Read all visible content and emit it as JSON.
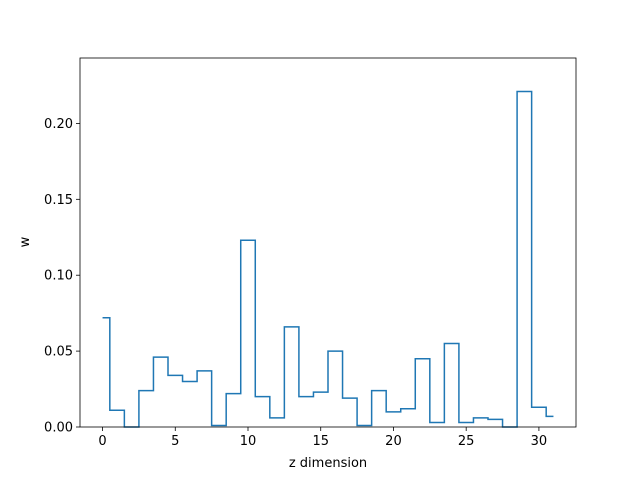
{
  "chart_data": {
    "type": "line",
    "drawstyle": "steps-mid",
    "title": "",
    "xlabel": "z dimension",
    "ylabel": "w",
    "xlim": [
      -1.55,
      32.55
    ],
    "ylim": [
      0,
      0.2431
    ],
    "xticks": [
      0,
      5,
      10,
      15,
      20,
      25,
      30
    ],
    "xtick_labels": [
      "0",
      "5",
      "10",
      "15",
      "20",
      "25",
      "30"
    ],
    "yticks": [
      0,
      0.05,
      0.1,
      0.15,
      0.2
    ],
    "ytick_labels": [
      "0.00",
      "0.05",
      "0.10",
      "0.15",
      "0.20"
    ],
    "grid": false,
    "line_color": "#1f77b4",
    "x": [
      0,
      1,
      2,
      3,
      4,
      5,
      6,
      7,
      8,
      9,
      10,
      11,
      12,
      13,
      14,
      15,
      16,
      17,
      18,
      19,
      20,
      21,
      22,
      23,
      24,
      25,
      26,
      27,
      28,
      29,
      30,
      31
    ],
    "values": [
      0.072,
      0.011,
      0.0,
      0.024,
      0.046,
      0.034,
      0.03,
      0.037,
      0.001,
      0.022,
      0.123,
      0.02,
      0.006,
      0.066,
      0.02,
      0.023,
      0.05,
      0.019,
      0.001,
      0.024,
      0.01,
      0.012,
      0.045,
      0.003,
      0.055,
      0.003,
      0.006,
      0.005,
      0.0,
      0.221,
      0.013,
      0.007
    ]
  }
}
